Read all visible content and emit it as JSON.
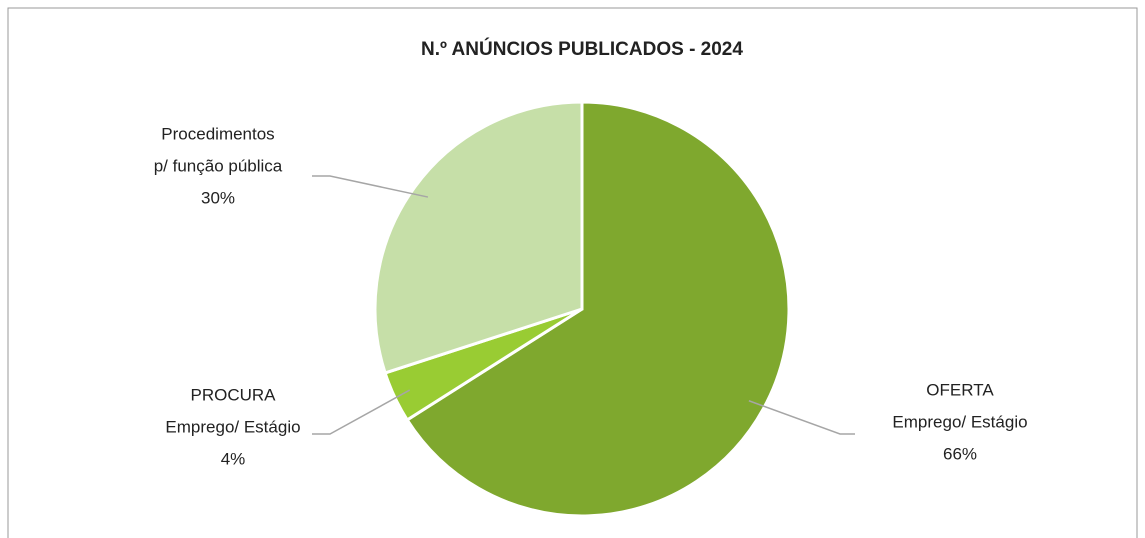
{
  "chart_data": {
    "type": "pie",
    "title": "N.º ANÚNCIOS PUBLICADOS - 2024",
    "categories": [
      [
        "OFERTA",
        "Emprego/ Estágio"
      ],
      [
        "PROCURA",
        "Emprego/ Estágio"
      ],
      [
        "Procedimentos",
        "p/ função pública"
      ]
    ],
    "values": [
      66,
      4,
      30
    ],
    "value_labels": [
      "66%",
      "4%",
      "30%"
    ],
    "colors": [
      "#7fa82e",
      "#99cc33",
      "#c6dfa8"
    ]
  }
}
